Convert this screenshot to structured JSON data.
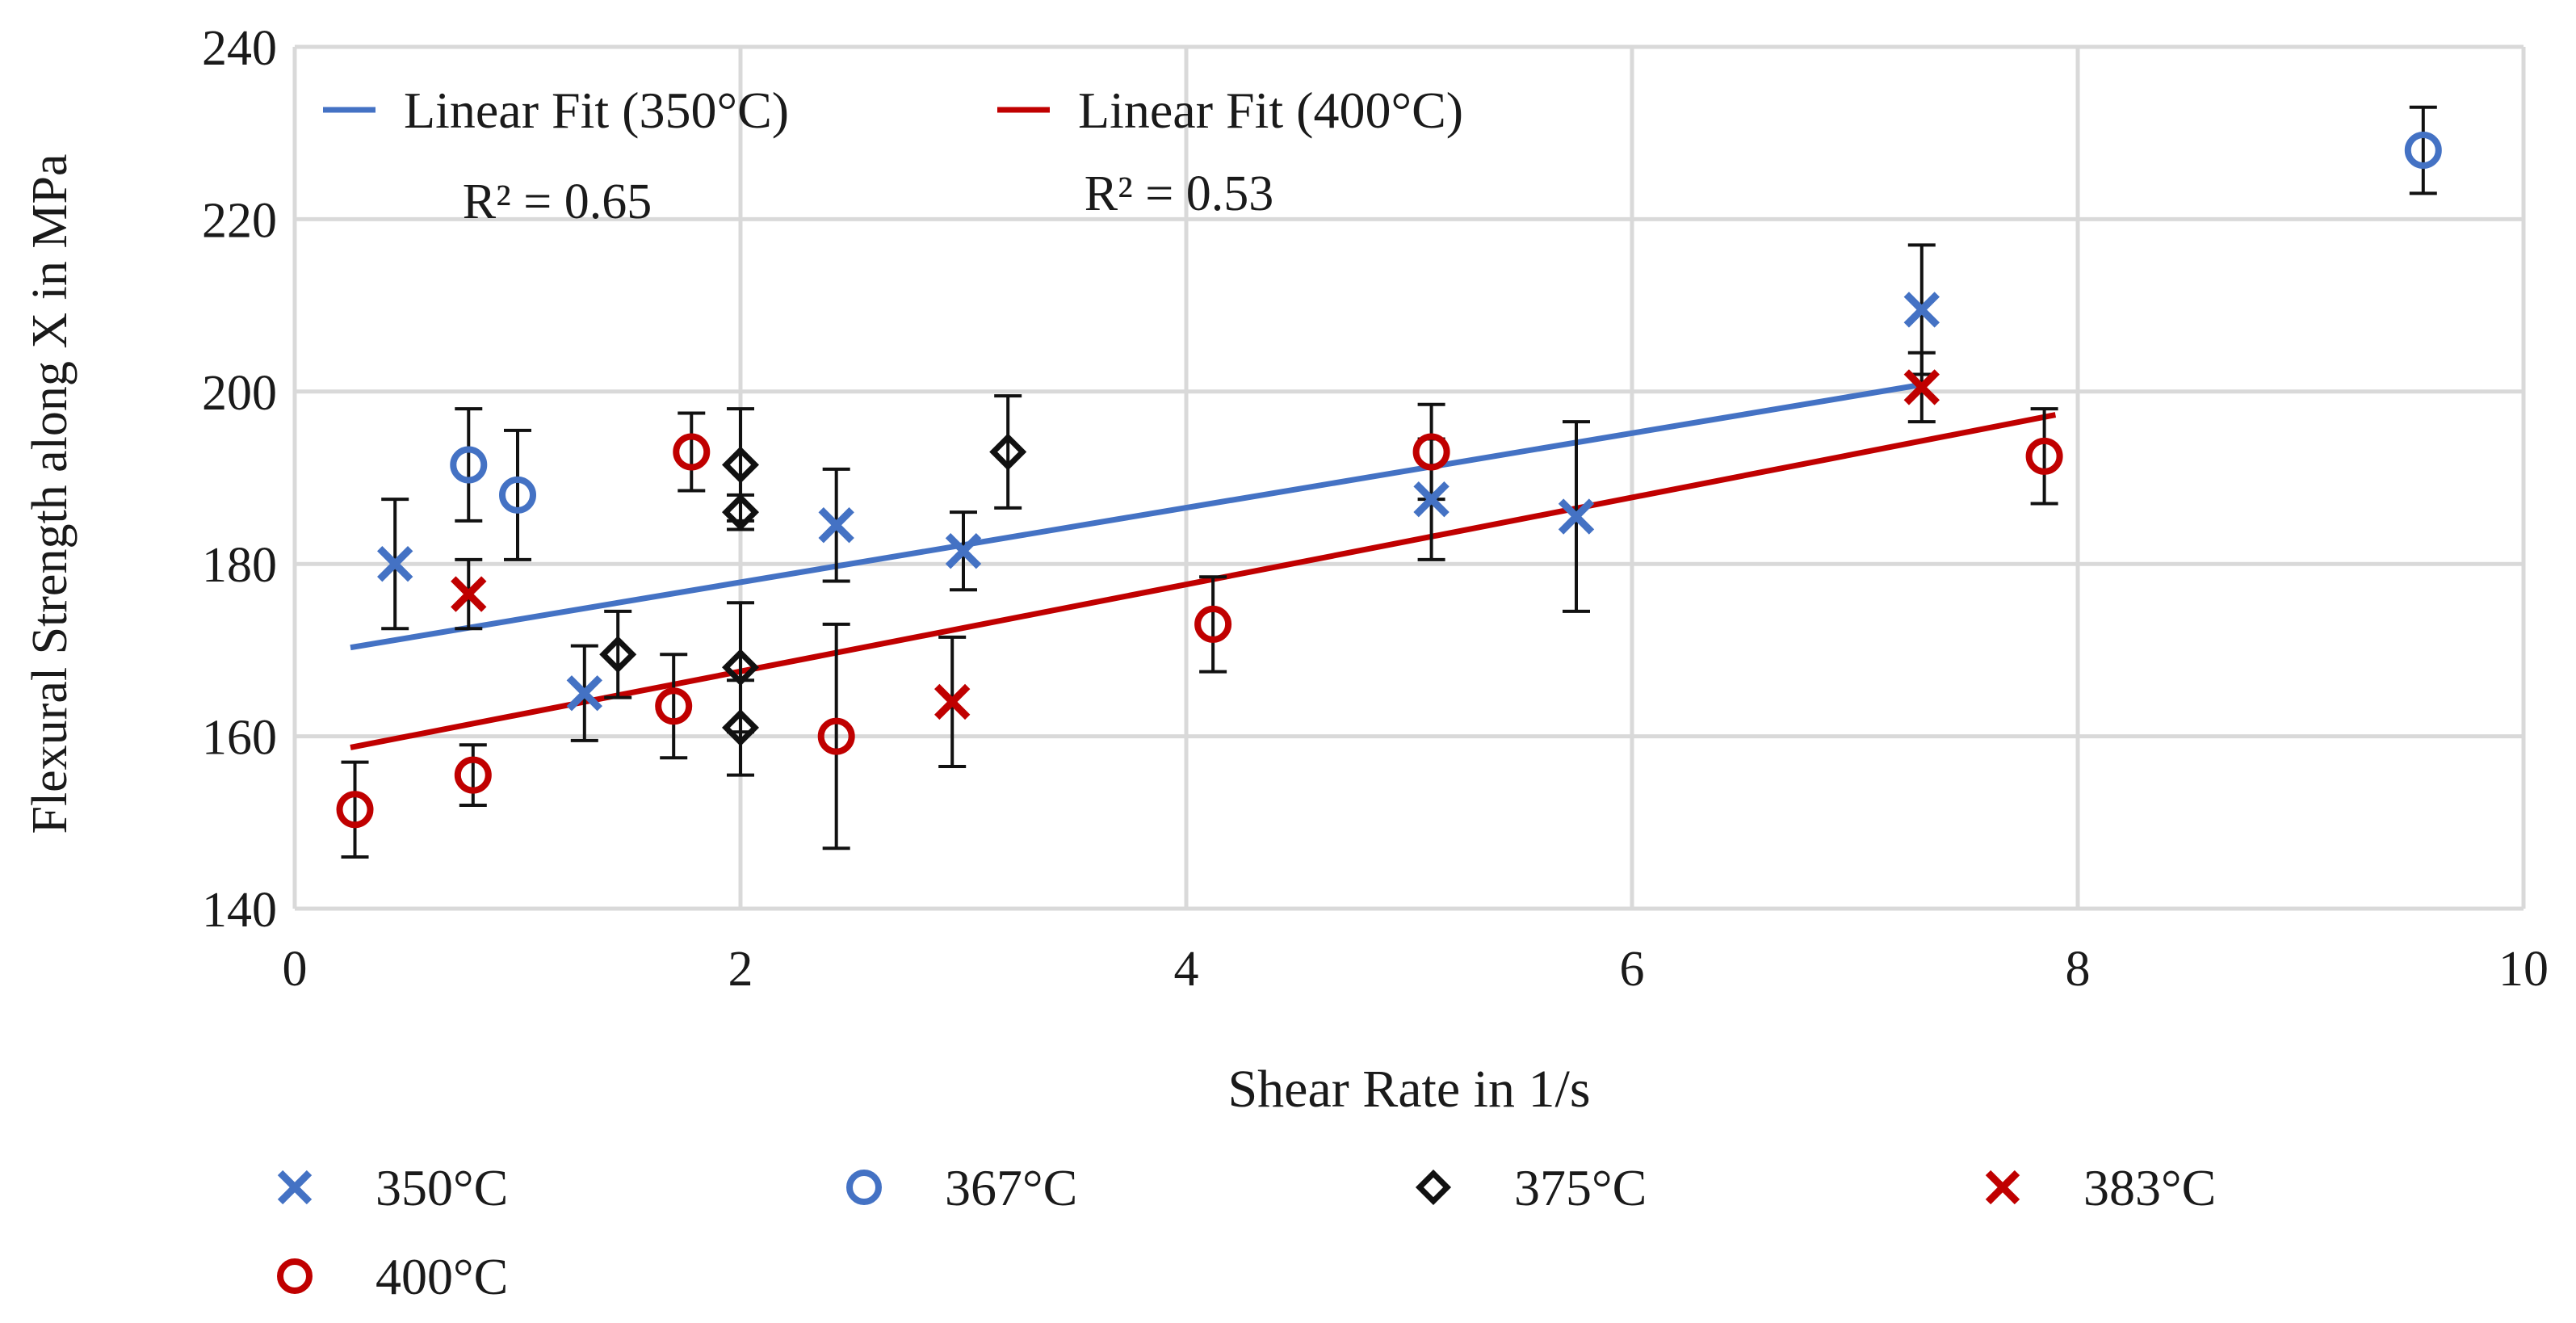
{
  "chart_data": {
    "type": "scatter",
    "title": "",
    "xlabel": "Shear Rate in 1/s",
    "ylabel": "Flexural Strength along X in MPa",
    "xlim": [
      0,
      10
    ],
    "ylim": [
      140,
      240
    ],
    "x_ticks": [
      0,
      2,
      4,
      6,
      8,
      10
    ],
    "y_ticks": [
      140,
      160,
      180,
      200,
      220,
      240
    ],
    "grid": true,
    "colors": {
      "blue": "#4472c4",
      "red": "#c00000",
      "black": "#111111",
      "grid": "#d9d9d9",
      "errorbar": "#111111"
    },
    "series": [
      {
        "name": "350°C",
        "marker": "x",
        "color": "#4472c4",
        "points": [
          {
            "x": 0.45,
            "y": 180,
            "err": 7.5
          },
          {
            "x": 1.3,
            "y": 165,
            "err": 5.5
          },
          {
            "x": 2.43,
            "y": 184.5,
            "err": 6.5
          },
          {
            "x": 3.0,
            "y": 181.5,
            "err": 4.5
          },
          {
            "x": 5.1,
            "y": 187.5,
            "err": 7
          },
          {
            "x": 5.75,
            "y": 185.5,
            "err": 11
          },
          {
            "x": 7.3,
            "y": 209.5,
            "err": 7.5
          }
        ]
      },
      {
        "name": "367°C",
        "marker": "o",
        "color": "#4472c4",
        "points": [
          {
            "x": 0.78,
            "y": 191.5,
            "err": 6.5
          },
          {
            "x": 1.0,
            "y": 188,
            "err": 7.5
          },
          {
            "x": 9.55,
            "y": 228,
            "err": 5
          }
        ]
      },
      {
        "name": "375°C",
        "marker": "diamond",
        "color": "#111111",
        "points": [
          {
            "x": 1.45,
            "y": 169.5,
            "err": 5
          },
          {
            "x": 2.0,
            "y": 191.5,
            "err": 6.5
          },
          {
            "x": 2.0,
            "y": 186,
            "err": 2
          },
          {
            "x": 2.0,
            "y": 168,
            "err": 7.5
          },
          {
            "x": 2.0,
            "y": 161,
            "err": 5.5
          },
          {
            "x": 3.2,
            "y": 193,
            "err": 6.5
          }
        ]
      },
      {
        "name": "383°C",
        "marker": "x",
        "color": "#c00000",
        "points": [
          {
            "x": 0.78,
            "y": 176.5,
            "err": 4
          },
          {
            "x": 2.95,
            "y": 164,
            "err": 7.5
          },
          {
            "x": 7.3,
            "y": 200.5,
            "err": 4
          }
        ]
      },
      {
        "name": "400°C",
        "marker": "o",
        "color": "#c00000",
        "points": [
          {
            "x": 0.27,
            "y": 151.5,
            "err": 5.5
          },
          {
            "x": 0.8,
            "y": 155.5,
            "err": 3.5
          },
          {
            "x": 1.7,
            "y": 163.5,
            "err": 6
          },
          {
            "x": 1.78,
            "y": 193,
            "err": 4.5
          },
          {
            "x": 2.43,
            "y": 160,
            "err": 13
          },
          {
            "x": 4.12,
            "y": 173,
            "err": 5.5
          },
          {
            "x": 5.1,
            "y": 193,
            "err": 5.5
          },
          {
            "x": 7.85,
            "y": 192.5,
            "err": 5.5
          }
        ]
      }
    ],
    "fits": [
      {
        "name": "Linear Fit (350°C)",
        "color": "#4472c4",
        "x": [
          0.25,
          7.3
        ],
        "y": [
          170.3,
          200.8
        ],
        "r2_label": "R² = 0.65"
      },
      {
        "name": "Linear Fit (400°C)",
        "color": "#c00000",
        "x": [
          0.25,
          7.9
        ],
        "y": [
          158.7,
          197.3
        ],
        "r2_label": "R² = 0.53"
      }
    ],
    "top_legend": [
      "Linear Fit (350°C)",
      "Linear Fit (400°C)"
    ],
    "bottom_legend": [
      "350°C",
      "367°C",
      "375°C",
      "383°C",
      "400°C"
    ]
  }
}
